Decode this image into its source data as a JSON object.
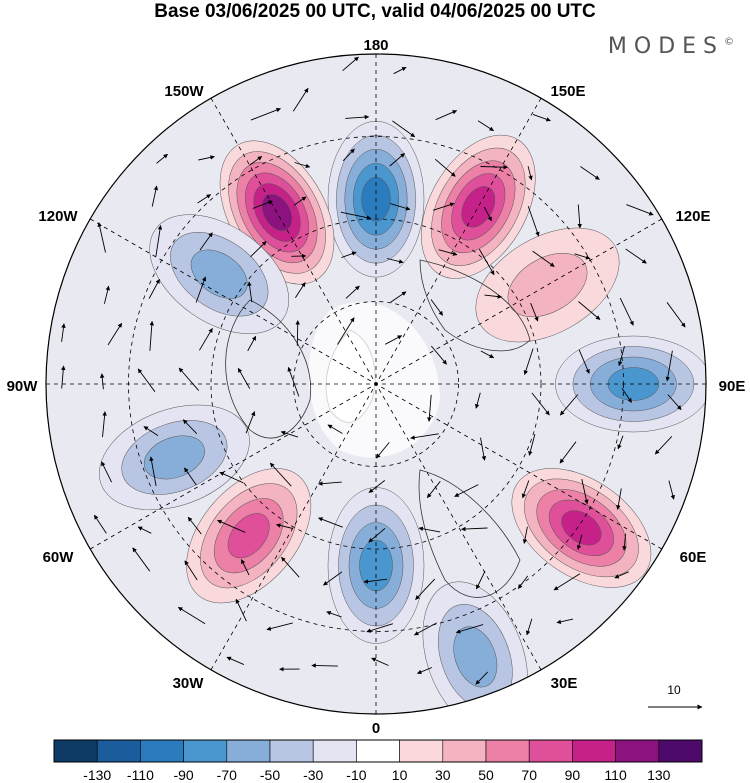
{
  "title": "Base 03/06/2025 00 UTC, valid 04/06/2025 00 UTC",
  "brand": "MODES",
  "brand_mark": "©",
  "longitude_labels": {
    "top": "180",
    "bottom": "0",
    "left": "90W",
    "right": "90E",
    "upper_left": "150W",
    "upper_left2": "120W",
    "upper_right": "150E",
    "upper_right2": "120E",
    "lower_left": "60W",
    "lower_left2": "30W",
    "lower_right": "60E",
    "lower_right2": "30E"
  },
  "vector_scale": {
    "label": "10"
  },
  "colorbar": {
    "labels": [
      "-130",
      "-110",
      "-90",
      "-70",
      "-50",
      "-30",
      "-10",
      "10",
      "30",
      "50",
      "70",
      "90",
      "110",
      "130"
    ],
    "colors": [
      "#0d3b66",
      "#1a5c9c",
      "#2b7bbf",
      "#4a96cf",
      "#86aed8",
      "#b9c6e3",
      "#e4e4f2",
      "#ffffff",
      "#f9d9dc",
      "#f4b3c0",
      "#ec80a7",
      "#e0509a",
      "#c52188",
      "#8b127f",
      "#4e0a6b"
    ]
  },
  "anomalies": [
    {
      "lon_deg": 150,
      "r": 0.62,
      "value": 90,
      "type": "pos"
    },
    {
      "lon_deg": 180,
      "r": 0.56,
      "value": -90,
      "type": "neg"
    },
    {
      "lon_deg": 210,
      "r": 0.6,
      "value": 110,
      "type": "pos"
    },
    {
      "lon_deg": 235,
      "r": 0.58,
      "value": -50,
      "type": "neg"
    },
    {
      "lon_deg": 120,
      "r": 0.6,
      "value": 40,
      "type": "pos"
    },
    {
      "lon_deg": 90,
      "r": 0.78,
      "value": -70,
      "type": "neg"
    },
    {
      "lon_deg": 55,
      "r": 0.76,
      "value": 90,
      "type": "pos"
    },
    {
      "lon_deg": 20,
      "r": 0.88,
      "value": -50,
      "type": "neg"
    },
    {
      "lon_deg": 0,
      "r": 0.55,
      "value": -70,
      "type": "neg"
    },
    {
      "lon_deg": 320,
      "r": 0.6,
      "value": 70,
      "type": "pos"
    },
    {
      "lon_deg": 290,
      "r": 0.65,
      "value": -50,
      "type": "neg"
    }
  ]
}
